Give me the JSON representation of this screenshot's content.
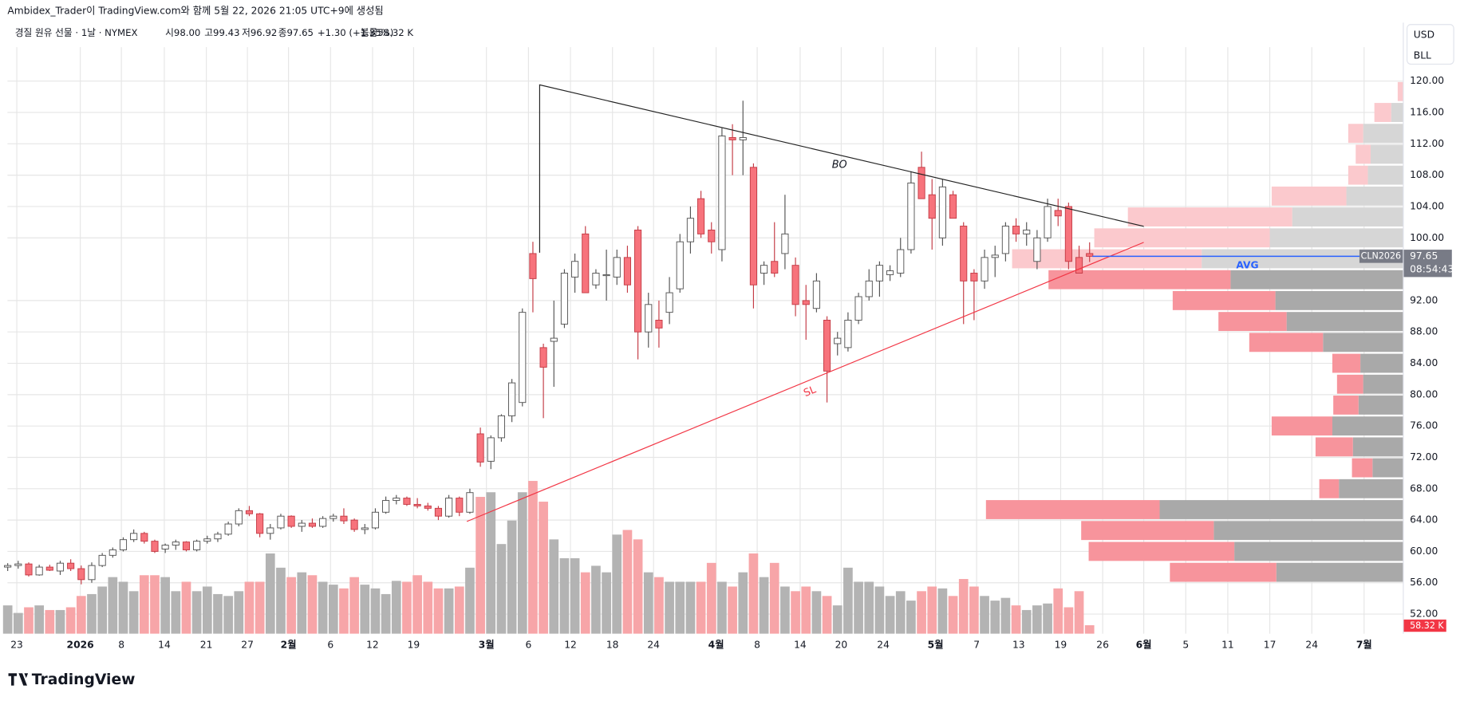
{
  "header": {
    "credit": "Ambidex_Trader이 TradingView.com와 함께 5월 22, 2026 21:05 UTC+9에 생성됨",
    "symbol": "경질 원유 선물 · 1날 · NYMEX",
    "open": "시98.00",
    "high": "고99.43",
    "low": "저96.92",
    "close": "종97.65",
    "change": "+1.30 (+1.35%)",
    "volume": "볼륨58.32 K"
  },
  "currency": "USD",
  "unit": "BLL",
  "logo": "TradingView",
  "chart_data": {
    "type": "candlestick",
    "ohlc": [
      [
        58,
        58.5,
        57.5,
        58.2
      ],
      [
        58.2,
        58.8,
        57.8,
        58.4
      ],
      [
        58.4,
        58.6,
        56.8,
        57
      ],
      [
        57,
        58.3,
        56.9,
        58
      ],
      [
        58,
        58.3,
        57.5,
        57.6
      ],
      [
        57.5,
        58.8,
        57,
        58.5
      ],
      [
        58.5,
        59,
        57.5,
        57.8
      ],
      [
        57.8,
        58.2,
        55.8,
        56.4
      ],
      [
        56.4,
        58.6,
        56,
        58.2
      ],
      [
        58.2,
        59.8,
        58,
        59.5
      ],
      [
        59.5,
        60.5,
        59.2,
        60.2
      ],
      [
        60.2,
        61.8,
        60,
        61.5
      ],
      [
        61.5,
        62.8,
        61.2,
        62.3
      ],
      [
        62.3,
        62.5,
        61,
        61.3
      ],
      [
        61.3,
        61.5,
        59.8,
        60
      ],
      [
        60.3,
        61,
        59.8,
        60.8
      ],
      [
        60.8,
        61.5,
        60.2,
        61.2
      ],
      [
        61.2,
        61.3,
        60,
        60.2
      ],
      [
        60.2,
        61.5,
        60,
        61.3
      ],
      [
        61.3,
        62,
        61,
        61.6
      ],
      [
        61.6,
        62.5,
        61.2,
        62.2
      ],
      [
        62.2,
        63.8,
        62,
        63.5
      ],
      [
        63.5,
        65.5,
        63.2,
        65.2
      ],
      [
        65.2,
        65.8,
        64.5,
        64.8
      ],
      [
        64.8,
        64.9,
        61.8,
        62.3
      ],
      [
        62.3,
        63.5,
        61.5,
        63
      ],
      [
        63,
        64.8,
        62.8,
        64.5
      ],
      [
        64.5,
        64.6,
        63,
        63.2
      ],
      [
        63.2,
        64,
        62.5,
        63.6
      ],
      [
        63.6,
        64.2,
        63,
        63.2
      ],
      [
        63.2,
        64.5,
        63,
        64.2
      ],
      [
        64.2,
        64.8,
        63.8,
        64.5
      ],
      [
        64.5,
        65.5,
        63.5,
        63.9
      ],
      [
        64,
        64.2,
        62.5,
        62.8
      ],
      [
        62.8,
        63.5,
        62.2,
        63
      ],
      [
        63,
        65.5,
        62.8,
        65
      ],
      [
        65,
        67,
        64.8,
        66.5
      ],
      [
        66.5,
        67.2,
        66,
        66.8
      ],
      [
        66.8,
        67,
        65.8,
        66
      ],
      [
        66,
        66.8,
        65.5,
        65.8
      ],
      [
        65.8,
        66.2,
        65.2,
        65.5
      ],
      [
        65.5,
        65.8,
        64,
        64.5
      ],
      [
        64.5,
        67.2,
        64.3,
        66.8
      ],
      [
        66.8,
        67,
        64.5,
        65
      ],
      [
        65,
        68,
        64.8,
        67.5
      ],
      [
        75,
        75.8,
        70.8,
        71.4
      ],
      [
        71.5,
        74.8,
        70.5,
        74.5
      ],
      [
        74.5,
        77.5,
        74,
        77.3
      ],
      [
        77.3,
        82,
        76.5,
        81.5
      ],
      [
        79,
        91,
        78.5,
        90.5
      ],
      [
        98,
        99.5,
        90.5,
        94.8
      ],
      [
        86,
        86.5,
        77,
        83.5
      ],
      [
        86.8,
        92,
        81,
        87.2
      ],
      [
        89,
        96,
        88.5,
        95.5
      ],
      [
        95,
        98,
        93,
        97
      ],
      [
        100.5,
        101.5,
        93,
        93
      ],
      [
        94,
        96,
        93.5,
        95.5
      ],
      [
        95.3,
        98.5,
        92,
        95.3
      ],
      [
        95,
        98.5,
        94,
        97.5
      ],
      [
        97.5,
        99,
        93,
        94
      ],
      [
        101,
        101.5,
        84.5,
        88
      ],
      [
        88,
        93,
        86,
        91.5
      ],
      [
        89.5,
        92,
        86,
        88.5
      ],
      [
        90.5,
        95,
        89,
        93
      ],
      [
        93.5,
        100.5,
        93,
        99.5
      ],
      [
        99.5,
        104,
        98,
        102.5
      ],
      [
        105,
        106,
        100,
        100.5
      ],
      [
        101,
        102,
        98,
        99.5
      ],
      [
        98.5,
        114,
        97,
        113
      ],
      [
        112.8,
        114.5,
        108,
        112.5
      ],
      [
        112.5,
        117.5,
        108,
        112.8
      ],
      [
        109,
        109.5,
        91,
        94
      ],
      [
        95.5,
        97,
        94,
        96.5
      ],
      [
        97,
        102,
        95,
        95.5
      ],
      [
        98,
        105.5,
        96,
        100.5
      ],
      [
        96.5,
        97.5,
        90,
        91.5
      ],
      [
        92,
        94,
        87,
        91.5
      ],
      [
        91,
        95.5,
        90.5,
        94.5
      ],
      [
        89.5,
        90,
        79,
        83
      ],
      [
        86.5,
        88,
        85,
        87.2
      ],
      [
        86,
        90.5,
        85.5,
        89.5
      ],
      [
        89.5,
        93,
        89,
        92.5
      ],
      [
        92.5,
        96,
        92,
        94.5
      ],
      [
        94.5,
        97,
        92.5,
        96.5
      ],
      [
        95.3,
        96.5,
        94.5,
        95.8
      ],
      [
        95.5,
        100,
        95,
        98.5
      ],
      [
        98.5,
        108.5,
        98,
        107
      ],
      [
        109,
        111,
        105,
        105
      ],
      [
        105.5,
        107.5,
        98.5,
        102.5
      ],
      [
        100,
        107.5,
        99,
        106.5
      ],
      [
        105.5,
        106,
        102.5,
        102.5
      ],
      [
        101.5,
        102,
        89,
        94.5
      ],
      [
        95.5,
        96,
        89.5,
        94.5
      ],
      [
        94.5,
        98.5,
        93.5,
        97.5
      ],
      [
        97.5,
        99,
        95,
        97.8
      ],
      [
        98,
        102,
        97,
        101.5
      ],
      [
        101.5,
        102.5,
        99.5,
        100.5
      ],
      [
        100.5,
        102,
        99,
        101
      ],
      [
        97,
        101,
        96,
        100
      ],
      [
        100,
        105,
        99.5,
        104
      ],
      [
        103.5,
        105,
        101.5,
        102.8
      ],
      [
        104,
        104.5,
        96,
        97
      ],
      [
        97.5,
        99,
        95.5,
        95.5
      ],
      [
        98,
        99.43,
        96.92,
        97.65
      ]
    ],
    "volume": [
      195,
      143,
      182,
      195,
      163,
      163,
      182,
      260,
      273,
      325,
      390,
      358,
      293,
      403,
      403,
      390,
      293,
      358,
      293,
      325,
      273,
      260,
      293,
      358,
      358,
      553,
      455,
      390,
      423,
      403,
      358,
      338,
      312,
      390,
      338,
      312,
      273,
      364,
      358,
      403,
      358,
      312,
      312,
      325,
      455,
      943,
      975,
      618,
      780,
      975,
      1053,
      910,
      650,
      520,
      520,
      423,
      468,
      423,
      683,
      715,
      650,
      423,
      390,
      358,
      358,
      358,
      358,
      488,
      358,
      325,
      423,
      553,
      390,
      488,
      325,
      293,
      325,
      293,
      260,
      195,
      455,
      358,
      358,
      325,
      260,
      293,
      228,
      293,
      325,
      312,
      260,
      377,
      325,
      260,
      228,
      247,
      195,
      163,
      195,
      208,
      312,
      182,
      293,
      58.32
    ],
    "volume_label": {
      "value": 58.32,
      "label": "58.32 K"
    },
    "up_color": "#ffffff",
    "down_color": "#f7737c",
    "volume_up_color": "#b3b3b3",
    "volume_down_color": "#f7a5a8",
    "last_price": {
      "value": 97.65,
      "label": "97.65"
    },
    "symbol_tag": "CLN2026",
    "countdown": "08:54:43",
    "ylim": [
      50,
      122
    ],
    "yticks": [
      {
        "value": 52,
        "label": "52.00"
      },
      {
        "value": 56,
        "label": "56.00"
      },
      {
        "value": 60,
        "label": "60.00"
      },
      {
        "value": 64,
        "label": "64.00"
      },
      {
        "value": 68,
        "label": "68.00"
      },
      {
        "value": 72,
        "label": "72.00"
      },
      {
        "value": 76,
        "label": "76.00"
      },
      {
        "value": 80,
        "label": "80.00"
      },
      {
        "value": 84,
        "label": "84.00"
      },
      {
        "value": 88,
        "label": "88.00"
      },
      {
        "value": 92,
        "label": "92.00"
      },
      {
        "value": 100,
        "label": "100.00"
      },
      {
        "value": 104,
        "label": "104.00"
      },
      {
        "value": 108,
        "label": "108.00"
      },
      {
        "value": 112,
        "label": "112.00"
      },
      {
        "value": 116,
        "label": "116.00"
      },
      {
        "value": 120,
        "label": "120.00"
      }
    ],
    "xticks": [
      "23",
      "2026",
      "8",
      "14",
      "21",
      "27",
      "2월",
      "6",
      "12",
      "19",
      "3월",
      "6",
      "12",
      "18",
      "24",
      "4월",
      "8",
      "14",
      "20",
      "24",
      "5월",
      "7",
      "13",
      "19",
      "26",
      "6월",
      "5",
      "11",
      "17",
      "24",
      "7월"
    ],
    "grid": true,
    "annotations": {
      "resistance": "BO",
      "support": "SL",
      "profile_label": "AVG"
    },
    "volume_profile": {
      "range": [
        56,
        120
      ],
      "value_area": [
        56,
        96
      ],
      "up": [
        136,
        181,
        203,
        261,
        69,
        33,
        54,
        76,
        48,
        43,
        46,
        86,
        125,
        137,
        185,
        216,
        143,
        119,
        61,
        38,
        35,
        43,
        13,
        0
      ],
      "down": [
        114,
        156,
        142,
        186,
        21,
        22,
        40,
        65,
        27,
        28,
        30,
        79,
        73,
        110,
        195,
        203,
        188,
        176,
        80,
        21,
        16,
        16,
        18,
        6
      ],
      "up_color": "#a9a9a9",
      "down_color": "#f7949c",
      "up_color_outside": "#d6d6d6",
      "down_color_outside": "#fbc9cd"
    }
  }
}
